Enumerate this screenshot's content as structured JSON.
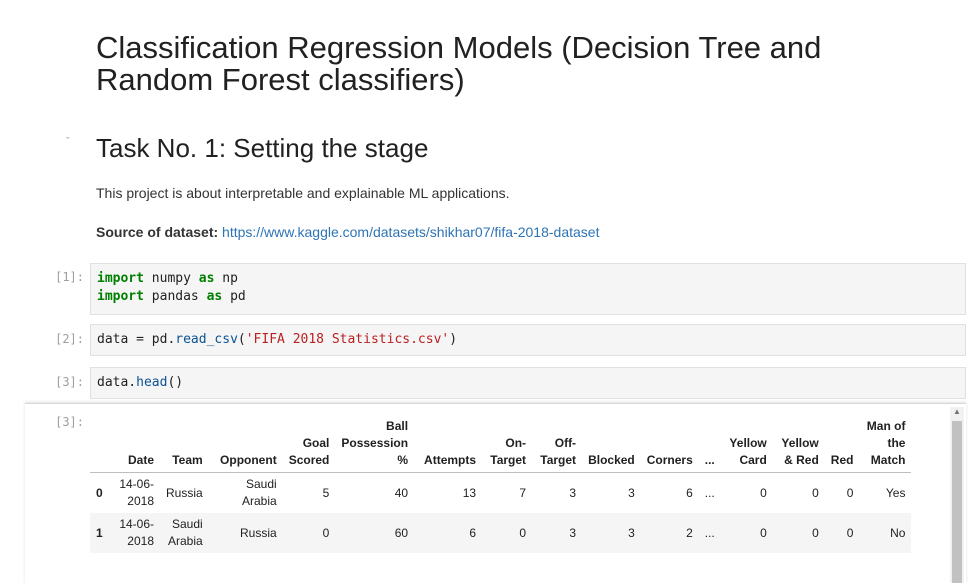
{
  "title": "Classification Regression Models (Decision Tree and Random Forest classifiers)",
  "section": {
    "collapse_icon": "chevron-down-icon",
    "heading": "Task No. 1: Setting the stage",
    "intro": "This project is about interpretable and explainable ML applications.",
    "source_label": "Source of dataset:",
    "source_link": "https://www.kaggle.com/datasets/shikhar07/fifa-2018-dataset"
  },
  "cells": {
    "c1": {
      "prompt": "[1]:",
      "l1_kw": "import",
      "l1_mod": " numpy ",
      "l1_as": "as",
      "l1_alias": " np",
      "l2_kw": "import",
      "l2_mod": " pandas ",
      "l2_as": "as",
      "l2_alias": " pd"
    },
    "c2": {
      "prompt": "[2]:",
      "pre": "data = pd.",
      "fn": "read_csv",
      "open": "(",
      "str": "'FIFA 2018 Statistics.csv'",
      "close": ")"
    },
    "c3": {
      "prompt": "[3]:",
      "pre": "data.",
      "fn": "head",
      "args": "()"
    },
    "out_prompt": "[3]:"
  },
  "table": {
    "headers": [
      "Date",
      "Team",
      "Opponent",
      "Goal Scored",
      "Ball Possession %",
      "Attempts",
      "On-Target",
      "Off-Target",
      "Blocked",
      "Corners",
      "...",
      "Yellow Card",
      "Yellow & Red",
      "Red",
      "Man of the Match"
    ],
    "rows": [
      {
        "index": "0",
        "cells": [
          "14-06-2018",
          "Russia",
          "Saudi Arabia",
          "5",
          "40",
          "13",
          "7",
          "3",
          "3",
          "6",
          "...",
          "0",
          "0",
          "0",
          "Yes"
        ]
      },
      {
        "index": "1",
        "cells": [
          "14-06-2018",
          "Saudi Arabia",
          "Russia",
          "0",
          "60",
          "6",
          "0",
          "3",
          "3",
          "2",
          "...",
          "0",
          "0",
          "0",
          "No"
        ]
      }
    ]
  }
}
